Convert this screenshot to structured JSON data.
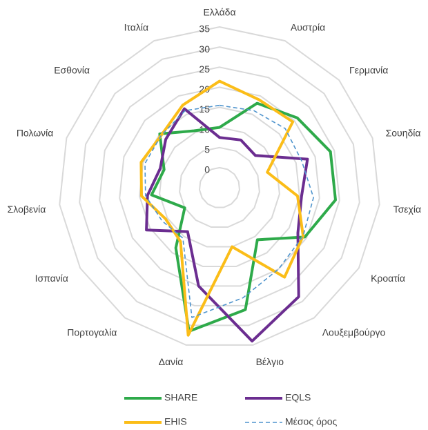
{
  "chart_data": {
    "type": "radar",
    "categories": [
      "Ελλάδα",
      "Αυστρία",
      "Γερμανία",
      "Σουηδία",
      "Τσεχία",
      "Κροατία",
      "Λουξεμβούργο",
      "Βέλγιο",
      "Δανία",
      "Πορτογαλία",
      "Ισπανία",
      "Σλοβενία",
      "Πολωνία",
      "Εσθονία",
      "Ιταλία"
    ],
    "series": [
      {
        "name": "SHARE",
        "color": "#2eaa4a",
        "dash": false,
        "values": [
          10,
          18,
          21,
          24,
          24,
          19.5,
          11,
          26,
          31.5,
          13.5,
          5,
          12,
          9.5,
          15,
          10.5
        ]
      },
      {
        "name": "EQLS",
        "color": "#6b2d90",
        "dash": false,
        "values": [
          7.5,
          8,
          7,
          18,
          15.5,
          17.5,
          28.5,
          34,
          20,
          8.5,
          16,
          13,
          10.5,
          13,
          16.5
        ]
      },
      {
        "name": "EHIS",
        "color": "#fbbd18",
        "dash": false,
        "values": [
          21.5,
          19,
          19.5,
          7.5,
          14.5,
          19,
          22.5,
          10,
          32.5,
          11.5,
          10.5,
          14.5,
          15.5,
          14.5,
          17.5
        ]
      },
      {
        "name": "Μέσος όρος",
        "color": "#4f94cd",
        "dash": true,
        "values": [
          15.5,
          16,
          17,
          16.5,
          18.5,
          19,
          20,
          23,
          28,
          10.5,
          11.5,
          13.5,
          14.5,
          14.5,
          16
        ]
      }
    ],
    "ylim": [
      -5,
      35
    ],
    "yticks": [
      0,
      5,
      10,
      15,
      20,
      25,
      30,
      35
    ],
    "grid": true,
    "legend": "bottom"
  }
}
